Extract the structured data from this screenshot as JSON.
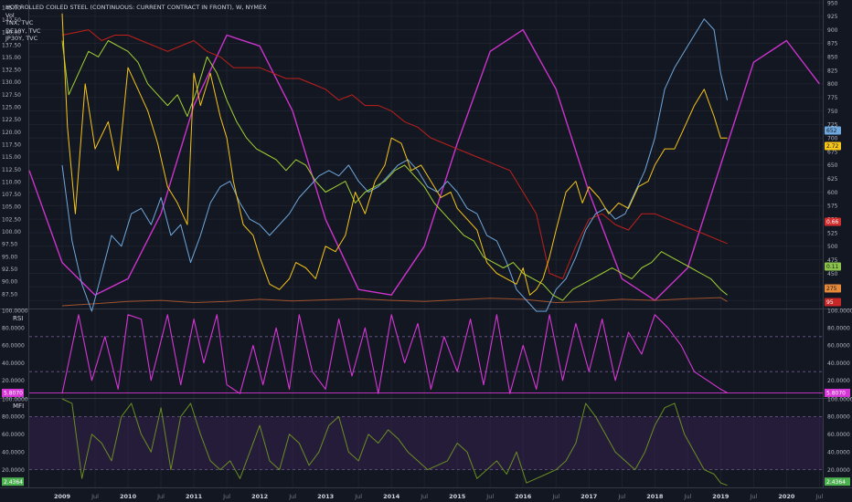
{
  "legend": {
    "main": "HOT ROLLED COILED STEEL (CONTINUOUS: CURRENT CONTRACT IN FRONT), W, NYMEX",
    "vol": "Vol",
    "tnx": "TNX, TVC",
    "de10y": "DE10Y, TVC",
    "jp30y": "JP30Y, TVC"
  },
  "panes": {
    "rsi_title": "RSI",
    "mfi_title": "MFI"
  },
  "colors": {
    "background": "#131722",
    "grid": "#1e222d",
    "steel": "#f5c518",
    "tnx": "#6fa8dc",
    "de10y": "#a4d233",
    "jp30y": "#c0201a",
    "vol": "#a0522d",
    "cycle": "#cc33cc",
    "rsi": "#d636d6",
    "mfi": "#6b8e23",
    "mfi_band": "#3a2457"
  },
  "chart_data": [
    {
      "type": "line",
      "x_axis_labels": [
        "2009",
        "Jul",
        "2010",
        "Jul",
        "2011",
        "Jul",
        "2012",
        "Jul",
        "2013",
        "Jul",
        "2014",
        "Jul",
        "2015",
        "Jul",
        "2016",
        "Jul",
        "2017",
        "Jul",
        "2018",
        "Jul",
        "2019",
        "Jul",
        "2020",
        "Jul"
      ],
      "left_axis_ticks": [
        "145.00",
        "142.50",
        "140.00",
        "137.50",
        "135.00",
        "132.50",
        "130.00",
        "127.50",
        "125.00",
        "122.50",
        "120.00",
        "117.50",
        "115.00",
        "112.50",
        "110.00",
        "107.50",
        "105.00",
        "102.50",
        "100.00",
        "97.50",
        "95.00",
        "92.50",
        "90.00",
        "87.50"
      ],
      "right_axis_ticks": [
        "950",
        "925",
        "900",
        "875",
        "850",
        "825",
        "800",
        "775",
        "750",
        "725",
        "700",
        "675",
        "650",
        "625",
        "600",
        "575",
        "550",
        "525",
        "500",
        "475",
        "450",
        "425",
        "400"
      ],
      "right_ylim": [
        385,
        955
      ],
      "x_range": [
        2008.5,
        2020.55
      ],
      "series": [
        {
          "name": "HOT ROLLED COILED STEEL",
          "axis": "right",
          "last_label": "2.72",
          "x": [
            2009.0,
            2009.08,
            2009.2,
            2009.35,
            2009.5,
            2009.7,
            2009.85,
            2010.0,
            2010.15,
            2010.3,
            2010.45,
            2010.6,
            2010.75,
            2010.9,
            2011.0,
            2011.1,
            2011.25,
            2011.4,
            2011.5,
            2011.6,
            2011.75,
            2011.9,
            2012.0,
            2012.15,
            2012.3,
            2012.45,
            2012.55,
            2012.7,
            2012.85,
            2013.0,
            2013.15,
            2013.3,
            2013.45,
            2013.6,
            2013.75,
            2013.9,
            2014.0,
            2014.15,
            2014.3,
            2014.45,
            2014.6,
            2014.75,
            2014.9,
            2015.0,
            2015.15,
            2015.3,
            2015.45,
            2015.6,
            2015.75,
            2015.9,
            2016.0,
            2016.1,
            2016.2,
            2016.3,
            2016.4,
            2016.5,
            2016.65,
            2016.8,
            2016.9,
            2017.0,
            2017.15,
            2017.3,
            2017.45,
            2017.6,
            2017.75,
            2017.9,
            2018.0,
            2018.15,
            2018.3,
            2018.45,
            2018.6,
            2018.75,
            2018.9,
            2019.0,
            2019.1
          ],
          "y": [
            930,
            720,
            560,
            800,
            680,
            730,
            640,
            830,
            790,
            750,
            690,
            610,
            580,
            540,
            820,
            760,
            820,
            740,
            700,
            620,
            540,
            520,
            480,
            430,
            420,
            440,
            470,
            460,
            440,
            500,
            490,
            520,
            600,
            560,
            620,
            650,
            700,
            690,
            640,
            650,
            620,
            590,
            600,
            570,
            550,
            530,
            470,
            450,
            440,
            430,
            460,
            410,
            420,
            440,
            480,
            530,
            600,
            620,
            580,
            610,
            590,
            560,
            580,
            570,
            610,
            620,
            650,
            680,
            680,
            720,
            760,
            790,
            740,
            700,
            700
          ]
        },
        {
          "name": "TNX, TVC",
          "axis": "right",
          "last_label": "652",
          "x": [
            2009.0,
            2009.15,
            2009.3,
            2009.45,
            2009.6,
            2009.75,
            2009.9,
            2010.05,
            2010.2,
            2010.35,
            2010.5,
            2010.65,
            2010.8,
            2010.95,
            2011.1,
            2011.25,
            2011.4,
            2011.55,
            2011.7,
            2011.85,
            2012.0,
            2012.15,
            2012.3,
            2012.45,
            2012.6,
            2012.75,
            2012.9,
            2013.05,
            2013.2,
            2013.35,
            2013.5,
            2013.65,
            2013.8,
            2013.95,
            2014.1,
            2014.25,
            2014.4,
            2014.55,
            2014.7,
            2014.85,
            2015.0,
            2015.15,
            2015.3,
            2015.45,
            2015.6,
            2015.75,
            2015.9,
            2016.05,
            2016.2,
            2016.35,
            2016.5,
            2016.65,
            2016.8,
            2016.95,
            2017.1,
            2017.25,
            2017.4,
            2017.55,
            2017.7,
            2017.85,
            2018.0,
            2018.15,
            2018.3,
            2018.45,
            2018.6,
            2018.75,
            2018.9,
            2019.0,
            2019.1
          ],
          "y": [
            650,
            510,
            430,
            380,
            450,
            520,
            500,
            560,
            570,
            540,
            590,
            520,
            540,
            470,
            520,
            580,
            610,
            620,
            580,
            550,
            540,
            520,
            540,
            560,
            590,
            610,
            630,
            640,
            630,
            650,
            620,
            600,
            610,
            630,
            650,
            660,
            640,
            610,
            600,
            620,
            600,
            570,
            560,
            520,
            510,
            470,
            420,
            400,
            380,
            380,
            420,
            440,
            480,
            530,
            560,
            570,
            550,
            560,
            600,
            640,
            700,
            790,
            830,
            860,
            890,
            920,
            900,
            820,
            770
          ]
        },
        {
          "name": "DE10Y, TVC",
          "axis": "right",
          "last_label": "0.11",
          "x": [
            2009.0,
            2009.1,
            2009.25,
            2009.4,
            2009.55,
            2009.7,
            2009.85,
            2010.0,
            2010.15,
            2010.3,
            2010.45,
            2010.6,
            2010.75,
            2010.9,
            2011.05,
            2011.2,
            2011.35,
            2011.5,
            2011.65,
            2011.8,
            2011.95,
            2012.1,
            2012.25,
            2012.4,
            2012.55,
            2012.7,
            2012.85,
            2013.0,
            2013.15,
            2013.3,
            2013.45,
            2013.6,
            2013.75,
            2013.9,
            2014.05,
            2014.2,
            2014.35,
            2014.5,
            2014.65,
            2014.8,
            2014.95,
            2015.1,
            2015.25,
            2015.4,
            2015.55,
            2015.7,
            2015.85,
            2016.0,
            2016.15,
            2016.3,
            2016.45,
            2016.6,
            2016.75,
            2016.9,
            2017.05,
            2017.2,
            2017.35,
            2017.5,
            2017.65,
            2017.8,
            2017.95,
            2018.1,
            2018.25,
            2018.4,
            2018.55,
            2018.7,
            2018.85,
            2019.0,
            2019.1
          ],
          "y": [
            880,
            780,
            820,
            860,
            850,
            880,
            870,
            860,
            840,
            800,
            780,
            760,
            780,
            740,
            790,
            850,
            820,
            770,
            730,
            700,
            680,
            670,
            660,
            640,
            660,
            650,
            620,
            600,
            610,
            620,
            580,
            600,
            610,
            620,
            640,
            650,
            630,
            610,
            580,
            560,
            540,
            520,
            510,
            480,
            470,
            460,
            470,
            450,
            440,
            430,
            410,
            400,
            420,
            430,
            440,
            450,
            460,
            450,
            440,
            460,
            470,
            490,
            480,
            470,
            460,
            450,
            440,
            420,
            410
          ]
        },
        {
          "name": "JP30Y, TVC",
          "axis": "right",
          "last_label": "0.66",
          "x": [
            2009.0,
            2009.2,
            2009.4,
            2009.6,
            2009.8,
            2010.0,
            2010.2,
            2010.4,
            2010.6,
            2010.8,
            2011.0,
            2011.2,
            2011.4,
            2011.6,
            2011.8,
            2012.0,
            2012.2,
            2012.4,
            2012.6,
            2012.8,
            2013.0,
            2013.2,
            2013.4,
            2013.6,
            2013.8,
            2014.0,
            2014.2,
            2014.4,
            2014.6,
            2014.8,
            2015.0,
            2015.2,
            2015.4,
            2015.6,
            2015.8,
            2016.0,
            2016.2,
            2016.4,
            2016.6,
            2016.8,
            2017.0,
            2017.2,
            2017.4,
            2017.6,
            2017.8,
            2018.0,
            2018.2,
            2018.4,
            2018.6,
            2018.8,
            2019.0,
            2019.1
          ],
          "y": [
            890,
            895,
            900,
            880,
            890,
            890,
            880,
            870,
            860,
            870,
            880,
            860,
            850,
            830,
            830,
            830,
            820,
            810,
            810,
            800,
            790,
            770,
            780,
            760,
            760,
            750,
            730,
            720,
            700,
            690,
            680,
            670,
            660,
            650,
            640,
            600,
            560,
            450,
            440,
            500,
            550,
            560,
            540,
            530,
            560,
            560,
            550,
            540,
            530,
            520,
            510,
            505
          ]
        },
        {
          "name": "Vol",
          "axis": "right",
          "last_label": "275",
          "x": [
            2009.0,
            2009.5,
            2010.0,
            2010.5,
            2011.0,
            2011.5,
            2012.0,
            2012.5,
            2013.0,
            2013.5,
            2014.0,
            2014.5,
            2015.0,
            2015.5,
            2016.0,
            2016.5,
            2017.0,
            2017.5,
            2018.0,
            2018.5,
            2019.0,
            2019.1
          ],
          "y": [
            390,
            394,
            398,
            400,
            396,
            398,
            402,
            399,
            401,
            403,
            400,
            398,
            401,
            404,
            402,
            396,
            398,
            402,
            400,
            403,
            405,
            398
          ]
        },
        {
          "name": "cycle",
          "axis": "right",
          "x": [
            2008.5,
            2009.0,
            2009.5,
            2010.0,
            2010.5,
            2011.0,
            2011.5,
            2012.0,
            2012.5,
            2013.0,
            2013.5,
            2014.0,
            2014.5,
            2015.0,
            2015.5,
            2016.0,
            2016.5,
            2017.0,
            2017.5,
            2018.0,
            2018.5,
            2019.0,
            2019.5,
            2020.0,
            2020.5
          ],
          "y": [
            640,
            470,
            410,
            440,
            560,
            760,
            890,
            870,
            750,
            550,
            420,
            410,
            500,
            690,
            860,
            900,
            790,
            600,
            440,
            400,
            460,
            650,
            840,
            880,
            800
          ]
        }
      ],
      "extra_price_labels": [
        "95"
      ]
    },
    {
      "type": "line",
      "title": "RSI",
      "ylim": [
        0,
        100
      ],
      "axis_ticks": [
        "100.0000",
        "80.0000",
        "60.0000",
        "40.0000",
        "20.0000"
      ],
      "last_label": "5.8070",
      "bands": [
        30,
        70
      ],
      "x": [
        2009.0,
        2009.25,
        2009.45,
        2009.65,
        2009.85,
        2010.0,
        2010.2,
        2010.35,
        2010.6,
        2010.8,
        2011.0,
        2011.15,
        2011.35,
        2011.5,
        2011.7,
        2011.9,
        2012.05,
        2012.25,
        2012.45,
        2012.6,
        2012.8,
        2013.0,
        2013.2,
        2013.4,
        2013.6,
        2013.8,
        2014.0,
        2014.2,
        2014.4,
        2014.6,
        2014.8,
        2015.0,
        2015.2,
        2015.4,
        2015.6,
        2015.8,
        2016.0,
        2016.2,
        2016.4,
        2016.6,
        2016.8,
        2017.0,
        2017.2,
        2017.4,
        2017.6,
        2017.8,
        2018.0,
        2018.2,
        2018.4,
        2018.6,
        2018.8,
        2019.0,
        2019.1
      ],
      "y": [
        5,
        95,
        20,
        70,
        10,
        95,
        90,
        20,
        95,
        15,
        90,
        40,
        95,
        15,
        5,
        60,
        15,
        80,
        10,
        95,
        30,
        10,
        90,
        25,
        80,
        5,
        95,
        40,
        85,
        10,
        70,
        30,
        90,
        15,
        95,
        5,
        60,
        10,
        95,
        20,
        85,
        30,
        90,
        20,
        75,
        50,
        95,
        80,
        60,
        30,
        20,
        10,
        5.8
      ]
    },
    {
      "type": "line",
      "title": "MFI",
      "ylim": [
        0,
        100
      ],
      "axis_ticks": [
        "100.0000",
        "80.0000",
        "60.0000",
        "40.0000",
        "20.0000"
      ],
      "last_label": "2.4364",
      "bands": [
        20,
        80
      ],
      "x": [
        2009.0,
        2009.15,
        2009.3,
        2009.45,
        2009.6,
        2009.75,
        2009.9,
        2010.05,
        2010.2,
        2010.35,
        2010.5,
        2010.65,
        2010.8,
        2010.95,
        2011.1,
        2011.25,
        2011.4,
        2011.55,
        2011.7,
        2011.85,
        2012.0,
        2012.15,
        2012.3,
        2012.45,
        2012.6,
        2012.75,
        2012.9,
        2013.05,
        2013.2,
        2013.35,
        2013.5,
        2013.65,
        2013.8,
        2013.95,
        2014.1,
        2014.25,
        2014.4,
        2014.55,
        2014.7,
        2014.85,
        2015.0,
        2015.15,
        2015.3,
        2015.45,
        2015.6,
        2015.75,
        2015.9,
        2016.05,
        2016.2,
        2016.35,
        2016.5,
        2016.65,
        2016.8,
        2016.95,
        2017.1,
        2017.25,
        2017.4,
        2017.55,
        2017.7,
        2017.85,
        2018.0,
        2018.15,
        2018.3,
        2018.45,
        2018.6,
        2018.75,
        2018.9,
        2019.0,
        2019.1
      ],
      "y": [
        100,
        95,
        10,
        60,
        50,
        30,
        80,
        95,
        60,
        40,
        90,
        20,
        80,
        95,
        60,
        30,
        20,
        30,
        10,
        40,
        70,
        30,
        20,
        60,
        50,
        25,
        40,
        70,
        80,
        40,
        30,
        60,
        50,
        65,
        55,
        40,
        30,
        20,
        25,
        30,
        50,
        40,
        10,
        20,
        30,
        15,
        40,
        5,
        10,
        15,
        20,
        30,
        50,
        95,
        80,
        60,
        40,
        30,
        20,
        40,
        70,
        90,
        95,
        60,
        40,
        20,
        15,
        5,
        2.4
      ]
    }
  ]
}
